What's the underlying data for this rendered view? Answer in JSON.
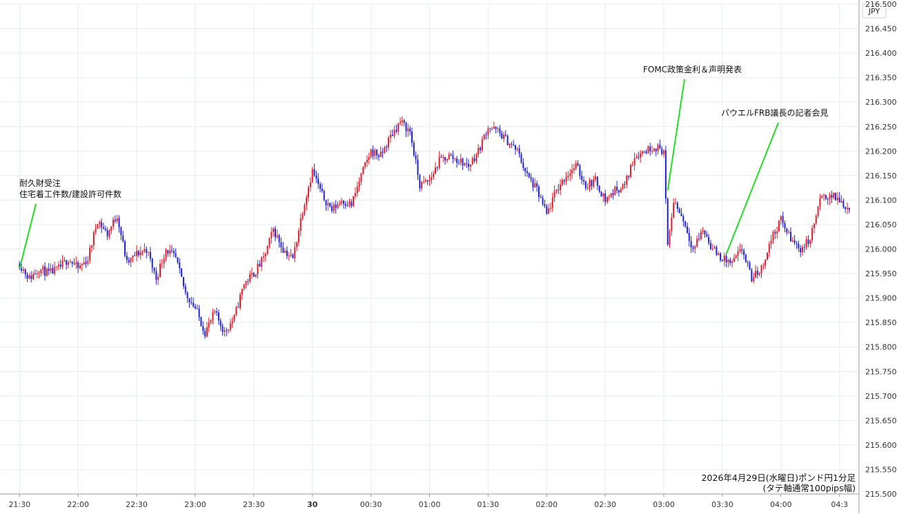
{
  "chart_data": {
    "type": "candlestick",
    "currency_label": "JPY",
    "caption": [
      "2026年4月29日(水曜日)ポンド円1分足",
      "(タテ軸通常100pips幅)"
    ],
    "ylim": [
      215.5,
      216.5
    ],
    "y_ticks": [
      "216.500",
      "216.450",
      "216.400",
      "216.350",
      "216.300",
      "216.250",
      "216.200",
      "216.150",
      "216.100",
      "216.050",
      "216.000",
      "215.950",
      "215.900",
      "215.850",
      "215.800",
      "215.750",
      "215.700",
      "215.650",
      "215.600",
      "215.550",
      "215.500"
    ],
    "x_ticks": [
      "21:30",
      "22:00",
      "22:30",
      "23:00",
      "23:30",
      "30",
      "00:30",
      "01:00",
      "01:30",
      "02:00",
      "02:30",
      "03:00",
      "03:30",
      "04:00",
      "04:3"
    ],
    "x_range_minutes": [
      -10,
      430
    ],
    "close_path": [
      [
        0,
        215.97
      ],
      [
        5,
        215.94
      ],
      [
        10,
        215.96
      ],
      [
        15,
        215.95
      ],
      [
        20,
        215.96
      ],
      [
        25,
        215.98
      ],
      [
        30,
        215.96
      ],
      [
        35,
        215.98
      ],
      [
        40,
        216.06
      ],
      [
        45,
        216.03
      ],
      [
        50,
        216.07
      ],
      [
        55,
        215.97
      ],
      [
        60,
        215.99
      ],
      [
        65,
        216.0
      ],
      [
        70,
        215.94
      ],
      [
        75,
        216.0
      ],
      [
        80,
        215.98
      ],
      [
        85,
        215.91
      ],
      [
        90,
        215.88
      ],
      [
        95,
        215.83
      ],
      [
        100,
        215.87
      ],
      [
        105,
        215.83
      ],
      [
        110,
        215.86
      ],
      [
        115,
        215.93
      ],
      [
        120,
        215.95
      ],
      [
        125,
        215.98
      ],
      [
        130,
        216.04
      ],
      [
        135,
        216.0
      ],
      [
        140,
        215.98
      ],
      [
        145,
        216.08
      ],
      [
        150,
        216.16
      ],
      [
        155,
        216.11
      ],
      [
        160,
        216.08
      ],
      [
        165,
        216.1
      ],
      [
        170,
        216.09
      ],
      [
        175,
        216.15
      ],
      [
        180,
        216.2
      ],
      [
        185,
        216.19
      ],
      [
        190,
        216.23
      ],
      [
        195,
        216.26
      ],
      [
        200,
        216.24
      ],
      [
        205,
        216.13
      ],
      [
        210,
        216.14
      ],
      [
        215,
        216.18
      ],
      [
        220,
        216.19
      ],
      [
        225,
        216.18
      ],
      [
        230,
        216.17
      ],
      [
        235,
        216.2
      ],
      [
        240,
        216.25
      ],
      [
        245,
        216.24
      ],
      [
        250,
        216.22
      ],
      [
        255,
        216.2
      ],
      [
        260,
        216.15
      ],
      [
        265,
        216.12
      ],
      [
        270,
        216.07
      ],
      [
        275,
        216.12
      ],
      [
        280,
        216.15
      ],
      [
        285,
        216.17
      ],
      [
        290,
        216.13
      ],
      [
        295,
        216.14
      ],
      [
        300,
        216.1
      ],
      [
        305,
        216.12
      ],
      [
        310,
        216.13
      ],
      [
        315,
        216.19
      ],
      [
        320,
        216.2
      ],
      [
        325,
        216.21
      ],
      [
        330,
        216.2
      ],
      [
        332,
        216.0
      ],
      [
        335,
        216.1
      ],
      [
        340,
        216.06
      ],
      [
        345,
        216.0
      ],
      [
        350,
        216.04
      ],
      [
        355,
        216.0
      ],
      [
        360,
        215.98
      ],
      [
        365,
        215.97
      ],
      [
        370,
        216.0
      ],
      [
        375,
        215.94
      ],
      [
        380,
        215.96
      ],
      [
        385,
        216.02
      ],
      [
        390,
        216.06
      ],
      [
        395,
        216.02
      ],
      [
        400,
        216.0
      ],
      [
        405,
        216.02
      ],
      [
        410,
        216.1
      ],
      [
        415,
        216.11
      ],
      [
        420,
        216.1
      ],
      [
        425,
        216.08
      ]
    ],
    "annotations": [
      {
        "lines": [
          "耐久財受注",
          "住宅着工件数/建設許可件数"
        ],
        "at_minute": 0,
        "at_value": 215.96
      },
      {
        "lines": [
          "FOMC政策金利＆声明発表"
        ],
        "at_minute": 332,
        "at_value": 216.12
      },
      {
        "lines": [
          "パウエルFRB議長の記者会見"
        ],
        "at_minute": 362,
        "at_value": 215.99
      }
    ],
    "colors": {
      "up": "#e0192a",
      "down": "#1f1fd1",
      "annotation_line": "#22dd22",
      "grid": "#e4eeee"
    },
    "grid": true
  }
}
